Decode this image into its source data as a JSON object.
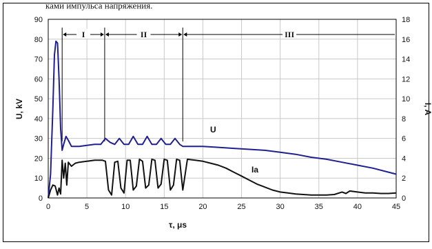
{
  "top_text": "ками импульса напряжения.",
  "chart_data": {
    "type": "line",
    "xlabel": "τ, μs",
    "ylabel_left": "U, kV",
    "ylabel_right": "I, A",
    "xlim": [
      0,
      45
    ],
    "ylim_left": [
      0,
      90
    ],
    "ylim_right": [
      0,
      18
    ],
    "x_ticks": [
      "0",
      "5",
      "10",
      "15",
      "20",
      "25",
      "30",
      "35",
      "40",
      "45"
    ],
    "y_ticks_left": [
      "0",
      "10",
      "20",
      "30",
      "40",
      "50",
      "60",
      "70",
      "80",
      "90"
    ],
    "y_ticks_right": [
      "0",
      "2",
      "4",
      "6",
      "8",
      "10",
      "12",
      "14",
      "16",
      "18"
    ],
    "grid": true,
    "regions": [
      {
        "label": "I",
        "start": 1.8,
        "end": 7.3
      },
      {
        "label": "II",
        "start": 7.3,
        "end": 17.4
      },
      {
        "label": "III",
        "start": 17.4,
        "end": 45
      }
    ],
    "series": [
      {
        "name": "U",
        "axis": "left",
        "color": "#1f1f8f",
        "x": [
          0,
          0.3,
          0.6,
          0.8,
          1.0,
          1.2,
          1.4,
          1.6,
          1.8,
          2.0,
          2.3,
          2.6,
          3.0,
          4,
          5,
          6,
          6.8,
          7.4,
          8.0,
          8.6,
          9.2,
          9.8,
          10.4,
          11.0,
          11.6,
          12.2,
          12.8,
          13.4,
          14.0,
          14.6,
          15.2,
          15.8,
          16.4,
          17.0,
          17.4,
          18,
          20,
          22,
          24,
          26,
          28,
          30,
          32,
          34,
          36,
          38,
          40,
          42,
          44,
          45
        ],
        "y": [
          0,
          12,
          45,
          72,
          79,
          78,
          60,
          35,
          24,
          27,
          31,
          29,
          26,
          26,
          26.5,
          27,
          27,
          30,
          28,
          27,
          30,
          27,
          27,
          31,
          27,
          27,
          31,
          27,
          27,
          30,
          27,
          27,
          30,
          27,
          26,
          26,
          26,
          25.5,
          25,
          24.5,
          24,
          23,
          22,
          20.5,
          19.5,
          18,
          16.5,
          15,
          13,
          12
        ]
      },
      {
        "name": "Ia",
        "axis": "right",
        "color": "#111111",
        "x": [
          0,
          0.3,
          0.6,
          0.9,
          1.2,
          1.4,
          1.6,
          1.8,
          2.0,
          2.2,
          2.4,
          2.6,
          2.8,
          3.0,
          3.5,
          4,
          5,
          6,
          7,
          7.4,
          7.8,
          8.2,
          8.6,
          9.0,
          9.4,
          9.8,
          10.2,
          10.6,
          11.0,
          11.4,
          11.8,
          12.2,
          12.6,
          13.0,
          13.4,
          13.8,
          14.2,
          14.6,
          15.0,
          15.4,
          15.8,
          16.2,
          16.6,
          17.0,
          17.4,
          18,
          19,
          20,
          21,
          22,
          23,
          24,
          25,
          26,
          27,
          28,
          29,
          30,
          31,
          32,
          33,
          34,
          35,
          36,
          37,
          38,
          38.5,
          39,
          40,
          41,
          42,
          43,
          44,
          45
        ],
        "y": [
          0,
          0.8,
          1.3,
          1.2,
          0.3,
          1.0,
          0.4,
          3.8,
          2.0,
          3.5,
          1.3,
          3.6,
          3.4,
          3.2,
          3.5,
          3.6,
          3.7,
          3.8,
          3.8,
          3.7,
          0.8,
          0.3,
          3.6,
          3.7,
          1.0,
          0.5,
          3.8,
          3.8,
          0.8,
          1.2,
          3.9,
          3.7,
          1.0,
          1.3,
          3.9,
          3.8,
          1.0,
          1.4,
          3.9,
          3.8,
          0.8,
          1.3,
          3.9,
          3.8,
          0.8,
          3.9,
          3.8,
          3.7,
          3.5,
          3.3,
          3.0,
          2.6,
          2.2,
          1.8,
          1.4,
          1.1,
          0.8,
          0.6,
          0.5,
          0.4,
          0.35,
          0.3,
          0.3,
          0.3,
          0.35,
          0.6,
          0.45,
          0.7,
          0.6,
          0.5,
          0.5,
          0.45,
          0.45,
          0.5
        ]
      }
    ]
  }
}
